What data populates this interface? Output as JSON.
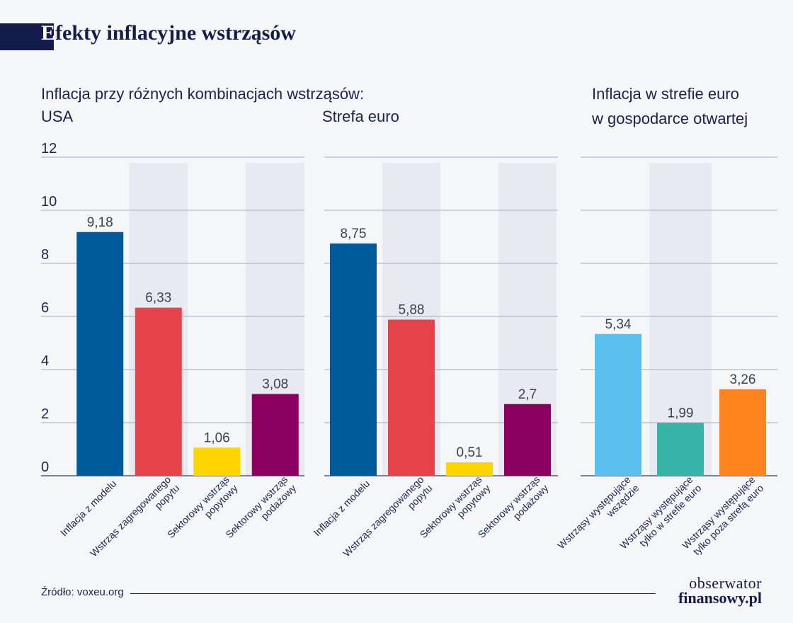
{
  "header": {
    "title_first_letter": "E",
    "title_rest": "fekty inflacyjne wstrząsów"
  },
  "subtitles": {
    "left_main": "Inflacja przy różnych kombinacjach wstrząsów:",
    "usa": "USA",
    "euro": "Strefa euro",
    "right_line1": "Inflacja w strefie euro",
    "right_line2": "w gospodarce otwartej"
  },
  "source": "Źródło: voxeu.org",
  "logo": {
    "line1": "obserwator",
    "line2": "finansowy.pl"
  },
  "colors": {
    "blue": "#005a9c",
    "red": "#e4434a",
    "yellow": "#ffd500",
    "purple": "#8c0060",
    "light_blue": "#5bc0f0",
    "teal": "#36b4a8",
    "orange": "#ff8420",
    "title_band": "#141c4c"
  },
  "chart_data": [
    {
      "type": "bar",
      "name": "USA",
      "categories": [
        [
          "Inflacja z modelu"
        ],
        [
          "Wstrząs zagregowanego",
          "popytu"
        ],
        [
          "Sektorowy wstrząs",
          "popytowy"
        ],
        [
          "Sektorowy wstrząs",
          "podażowy"
        ]
      ],
      "values": [
        9.18,
        6.33,
        1.06,
        3.08
      ],
      "value_labels": [
        "9,18",
        "6,33",
        "1,06",
        "3,08"
      ],
      "bar_colors": [
        "#005a9c",
        "#e4434a",
        "#ffd500",
        "#8c0060"
      ],
      "ylim": [
        0,
        12
      ],
      "yticks": [
        "0",
        "2",
        "4",
        "6",
        "8",
        "10",
        "12"
      ],
      "grid": true
    },
    {
      "type": "bar",
      "name": "Strefa euro",
      "categories": [
        [
          "Inflacja z modelu"
        ],
        [
          "Wstrząs zagregowanego",
          "popytu"
        ],
        [
          "Sektorowy wstrząs",
          "popytowy"
        ],
        [
          "Sektorowy wstrząs",
          "podażowy"
        ]
      ],
      "values": [
        8.75,
        5.88,
        0.51,
        2.7
      ],
      "value_labels": [
        "8,75",
        "5,88",
        "0,51",
        "2,7"
      ],
      "bar_colors": [
        "#005a9c",
        "#e4434a",
        "#ffd500",
        "#8c0060"
      ],
      "ylim": [
        0,
        12
      ],
      "grid": true
    },
    {
      "type": "bar",
      "name": "Inflacja w strefie euro w gospodarce otwartej",
      "categories": [
        [
          "Wstrząsy występujące",
          "wszędzie"
        ],
        [
          "Wstrząsy występujące",
          "tylko w strefie euro"
        ],
        [
          "Wstrząsy występujące",
          "tylko poza strefą euro"
        ]
      ],
      "values": [
        5.34,
        1.99,
        3.26
      ],
      "value_labels": [
        "5,34",
        "1,99",
        "3,26"
      ],
      "bar_colors": [
        "#5bc0f0",
        "#36b4a8",
        "#ff8420"
      ],
      "ylim": [
        0,
        12
      ],
      "grid": true
    }
  ]
}
